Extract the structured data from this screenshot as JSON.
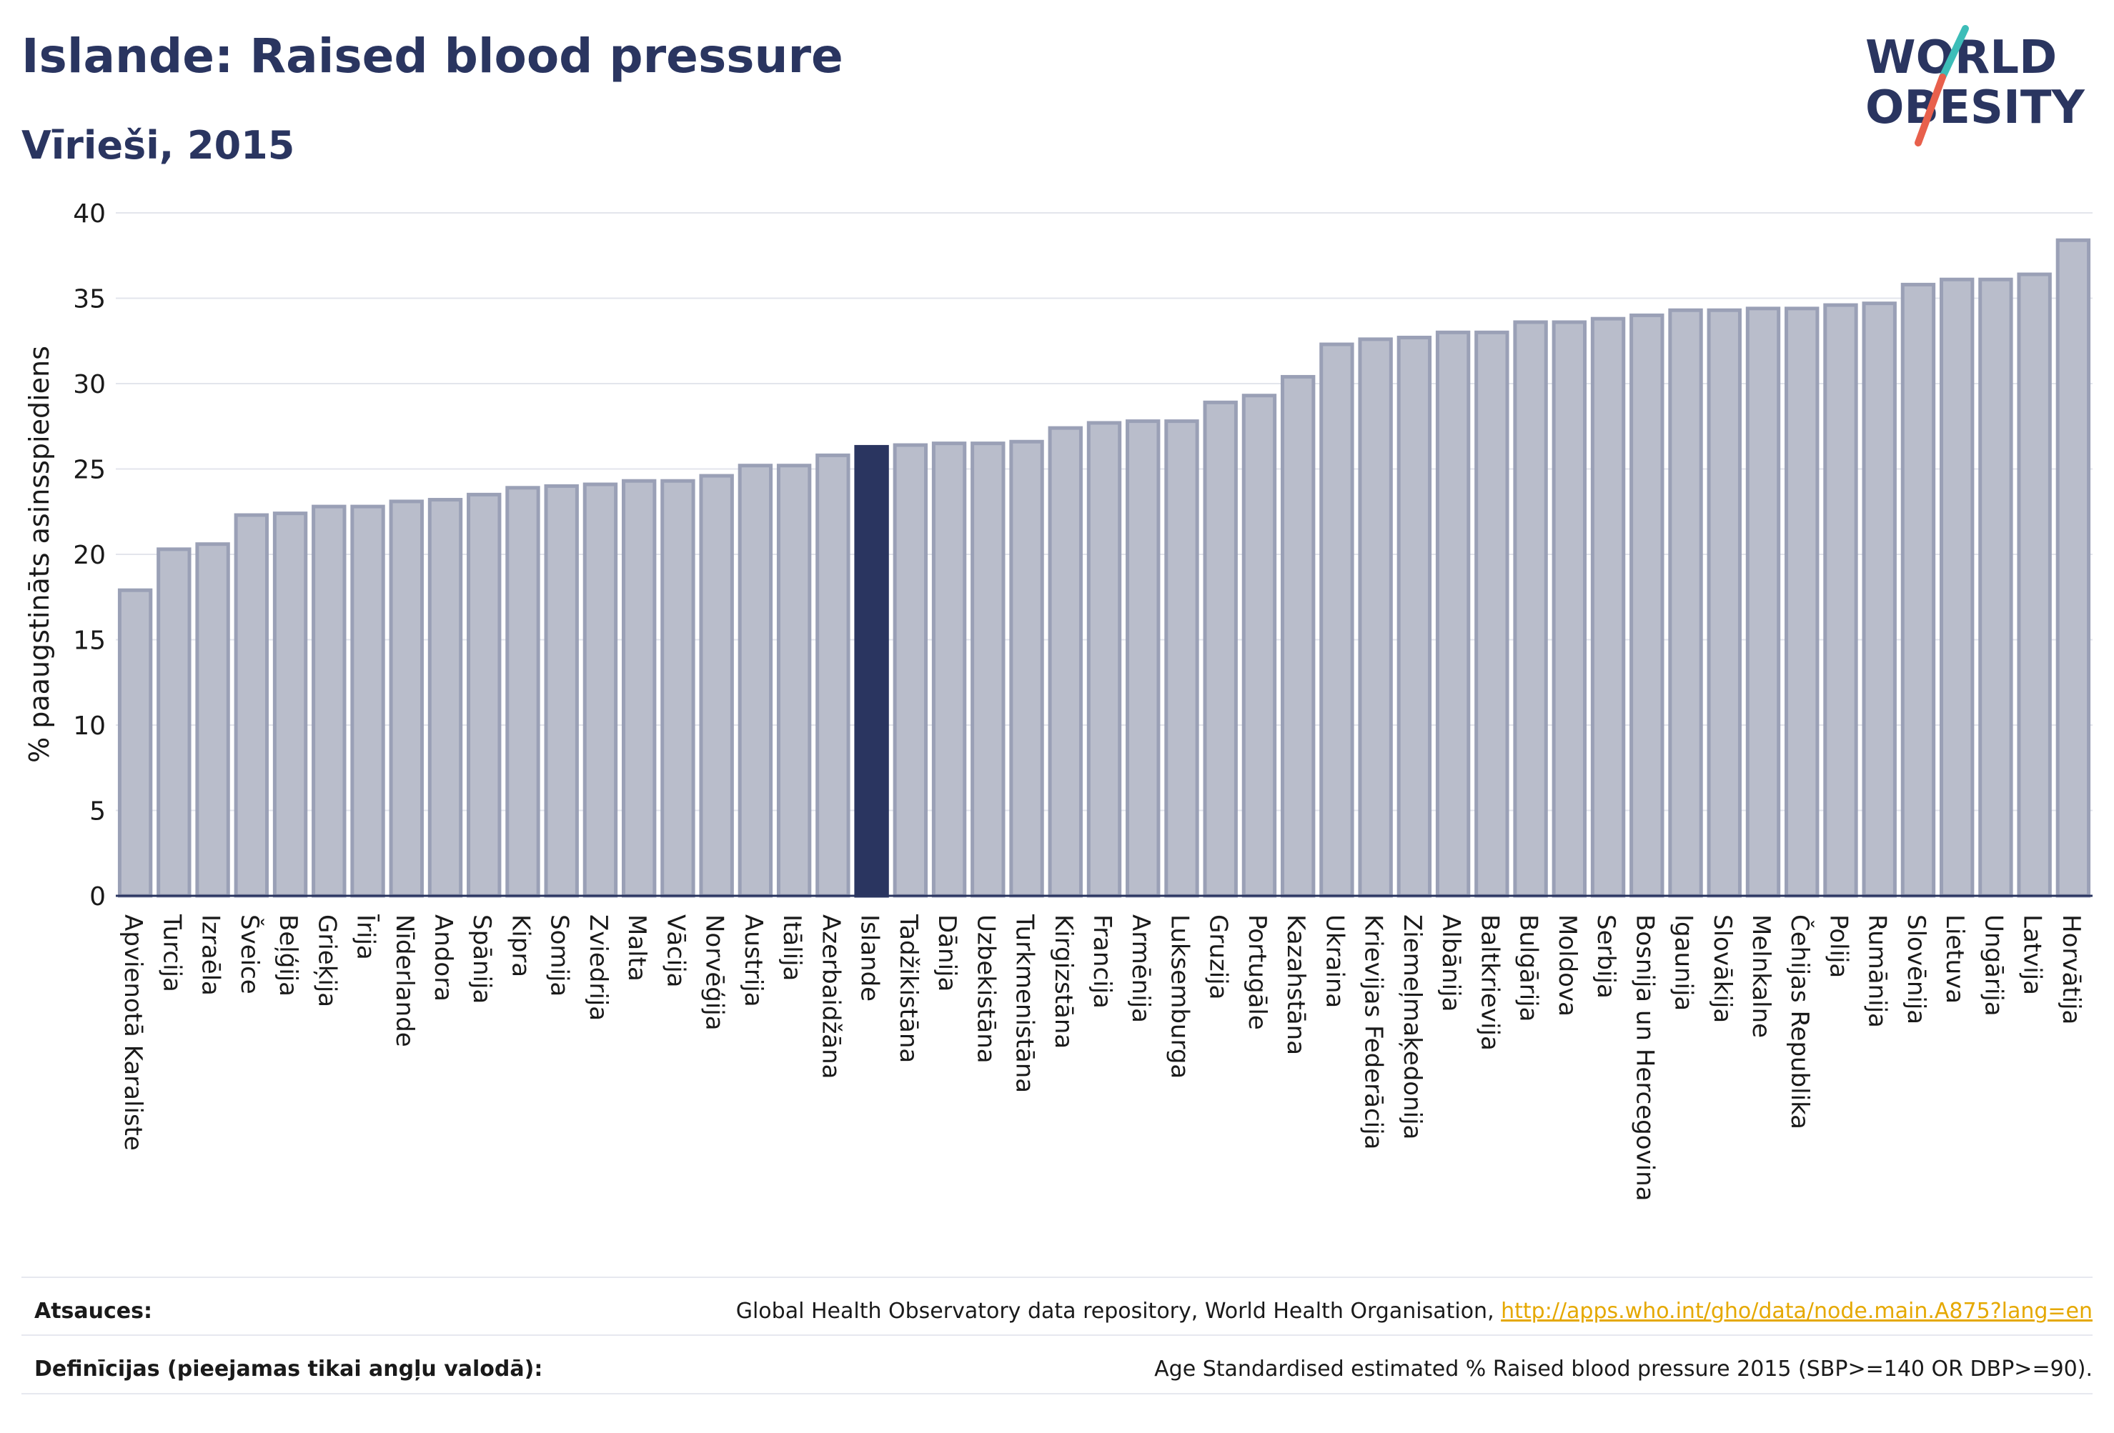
{
  "header": {
    "title": "Islande: Raised blood pressure",
    "subtitle": "Vīrieši, 2015"
  },
  "logo": {
    "line1": "WORLD",
    "line2": "OBESITY"
  },
  "colors": {
    "bar": "#b9bdcb",
    "bar_stroke": "#9aa0b6",
    "highlight": "#2a3560",
    "text_dark": "#2a3560",
    "logo_red": "#e8604c",
    "logo_teal": "#3dbdb8",
    "link": "#e5a800"
  },
  "chart_data": {
    "type": "bar",
    "ylabel": "% paaugstināts asinsspiediens",
    "ylim": [
      0,
      40
    ],
    "yticks": [
      0,
      5,
      10,
      15,
      20,
      25,
      30,
      35,
      40
    ],
    "grid": true,
    "highlight": "Islande",
    "categories": [
      "Apvienotā Karaliste",
      "Turcija",
      "Izraēla",
      "Šveice",
      "Beļģija",
      "Grieķija",
      "Īrija",
      "Nīderlande",
      "Andora",
      "Spānija",
      "Kipra",
      "Somija",
      "Zviedrija",
      "Malta",
      "Vācija",
      "Norvēģija",
      "Austrija",
      "Itālija",
      "Azerbaidžāna",
      "Islande",
      "Tadžikistāna",
      "Dānija",
      "Uzbekistāna",
      "Turkmenistāna",
      "Kirgizstāna",
      "Francija",
      "Armēnija",
      "Luksemburga",
      "Gruzija",
      "Portugāle",
      "Kazahstāna",
      "Ukraina",
      "Krievijas Federācija",
      "Ziemeļmaķedonija",
      "Albānija",
      "Baltkrievija",
      "Bulgārija",
      "Moldova",
      "Serbija",
      "Bosnija un Hercegovina",
      "Igaunija",
      "Slovākija",
      "Melnkalne",
      "Čehijas Republika",
      "Polija",
      "Rumānija",
      "Slovēnija",
      "Lietuva",
      "Ungārija",
      "Latvija",
      "Horvātija"
    ],
    "values": [
      17.9,
      20.3,
      20.6,
      22.3,
      22.4,
      22.8,
      22.8,
      23.1,
      23.2,
      23.5,
      23.9,
      24.0,
      24.1,
      24.3,
      24.3,
      24.6,
      25.2,
      25.2,
      25.8,
      26.3,
      26.4,
      26.5,
      26.5,
      26.6,
      27.4,
      27.7,
      27.8,
      27.8,
      28.9,
      29.3,
      30.4,
      32.3,
      32.6,
      32.7,
      33.0,
      33.0,
      33.6,
      33.6,
      33.8,
      34.0,
      34.3,
      34.3,
      34.4,
      34.4,
      34.6,
      34.7,
      35.8,
      36.1,
      36.1,
      36.4,
      38.4
    ]
  },
  "footer": {
    "sources_label": "Atsauces:",
    "sources_text": "Global Health Observatory data repository, World Health Organisation, ",
    "sources_link": "http://apps.who.int/gho/data/node.main.A875?lang=en",
    "definitions_label": "Definīcijas (pieejamas tikai angļu valodā):",
    "definitions_text": "Age Standardised estimated % Raised blood pressure 2015 (SBP>=140 OR DBP>=90)."
  }
}
